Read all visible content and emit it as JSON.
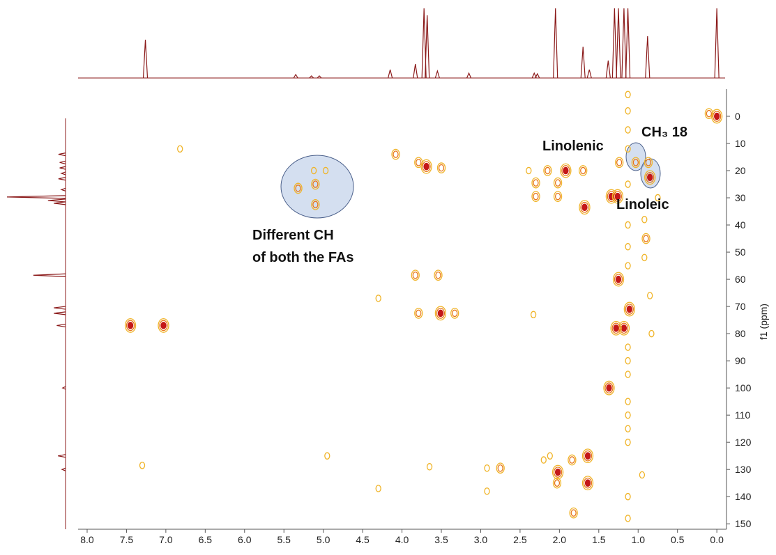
{
  "chart_data": {
    "type": "scatter",
    "y_axis_label": "f1 (ppm)",
    "xlim": [
      8.115,
      -0.105
    ],
    "ylim": [
      -10,
      152
    ],
    "xticks": [
      {
        "value": 8,
        "label": "8.0"
      },
      {
        "value": 7.5,
        "label": "7.5"
      },
      {
        "value": 7,
        "label": "7.0"
      },
      {
        "value": 6.5,
        "label": "6.5"
      },
      {
        "value": 6,
        "label": "6.0"
      },
      {
        "value": 5.5,
        "label": "5.5"
      },
      {
        "value": 5,
        "label": "5.0"
      },
      {
        "value": 4.5,
        "label": "4.5"
      },
      {
        "value": 4,
        "label": "4.0"
      },
      {
        "value": 3.5,
        "label": "3.5"
      },
      {
        "value": 3,
        "label": "3.0"
      },
      {
        "value": 2.5,
        "label": "2.5"
      },
      {
        "value": 2,
        "label": "2.0"
      },
      {
        "value": 1.5,
        "label": "1.5"
      },
      {
        "value": 1,
        "label": "1.0"
      },
      {
        "value": 0.5,
        "label": "0.5"
      },
      {
        "value": 0,
        "label": "0.0"
      }
    ],
    "yticks": [
      0,
      10,
      20,
      30,
      40,
      50,
      60,
      70,
      80,
      90,
      100,
      110,
      120,
      130,
      140,
      150
    ],
    "annotations": [
      "Linolenic",
      "CH₃ 18",
      "Linoleic",
      [
        "Different CH",
        "of both the FAs"
      ]
    ],
    "colors": [
      "#f0b428",
      "#e8761a",
      "#c41818"
    ],
    "trace_color": "#8b1a1a",
    "peaks": {
      "x": [
        0.0,
        0.1,
        7.45,
        7.03,
        6.82,
        5.32,
        5.12,
        5.1,
        5.1,
        4.97,
        4.08,
        3.79,
        3.69,
        3.5,
        3.83,
        3.54,
        3.51,
        3.79,
        3.33,
        4.3,
        2.3,
        2.3,
        2.02,
        2.02,
        2.39,
        1.92,
        2.15,
        1.7,
        1.68,
        1.34,
        1.26,
        1.24,
        1.03,
        0.87,
        0.85,
        1.25,
        1.18,
        1.11,
        1.28,
        1.37,
        1.64,
        1.64,
        2.02,
        1.84,
        2.2,
        2.03,
        2.75,
        2.92,
        0.95,
        1.82,
        1.13,
        1.13,
        1.13,
        1.13,
        1.13,
        1.13,
        1.13,
        1.13,
        1.13,
        1.13,
        1.13,
        1.13,
        1.13,
        1.13,
        1.13,
        1.13,
        1.13,
        0.92,
        0.9,
        0.92,
        0.75,
        0.85,
        0.83,
        2.33,
        4.95,
        7.3,
        3.65,
        4.3,
        2.92,
        2.12
      ],
      "y": [
        0,
        -1,
        77,
        77,
        12,
        26.5,
        20,
        25,
        32.5,
        20,
        14,
        17,
        18.5,
        19,
        58.5,
        58.5,
        72.5,
        72.5,
        72.5,
        67,
        24.5,
        29.5,
        24.5,
        29.5,
        20,
        20,
        20,
        20,
        33.5,
        29.5,
        29.5,
        17,
        17,
        17,
        22.5,
        60,
        78,
        71,
        78,
        100,
        125,
        135,
        131,
        126.5,
        126.5,
        135,
        129.5,
        129.5,
        132,
        146,
        -8,
        -2,
        5,
        12,
        25,
        40,
        48,
        55,
        85,
        90,
        95,
        105,
        110,
        115,
        120,
        140,
        148,
        38,
        45,
        52,
        30,
        66,
        80,
        73,
        125,
        128.5,
        129,
        137,
        138,
        125
      ],
      "intensity": [
        3,
        2,
        3,
        3,
        1,
        2,
        1,
        2,
        2,
        1,
        2,
        2,
        3,
        2,
        2,
        2,
        3,
        2,
        2,
        1,
        2,
        2,
        2,
        2,
        1,
        3,
        2,
        2,
        3,
        3,
        3,
        2,
        2,
        2,
        3,
        3,
        3,
        3,
        3,
        3,
        3,
        3,
        3,
        2,
        1,
        2,
        2,
        1,
        1,
        2,
        1,
        1,
        1,
        1,
        1,
        1,
        1,
        1,
        1,
        1,
        1,
        1,
        1,
        1,
        1,
        1,
        1,
        1,
        2,
        1,
        1,
        1,
        1,
        1,
        1,
        1,
        1,
        1,
        1,
        1
      ]
    },
    "x_projection": {
      "x": [
        7.26,
        5.35,
        5.15,
        5.05,
        4.15,
        3.83,
        3.72,
        3.68,
        3.55,
        3.15,
        2.32,
        2.28,
        2.05,
        1.7,
        1.62,
        1.38,
        1.3,
        1.25,
        1.18,
        1.13,
        0.88,
        0.0
      ],
      "heights": [
        0.55,
        0.05,
        0.03,
        0.03,
        0.12,
        0.2,
        1,
        0.9,
        0.1,
        0.07,
        0.07,
        0.06,
        1,
        0.45,
        0.12,
        0.25,
        1,
        1,
        1,
        1,
        0.6,
        1
      ]
    },
    "y_projection": {
      "y": [
        14,
        17,
        19,
        21,
        23,
        27,
        29.7,
        31,
        32,
        58.5,
        70.5,
        72.5,
        77,
        100,
        125,
        130
      ],
      "heights": [
        0.12,
        0.1,
        0.1,
        0.07,
        0.12,
        0.07,
        1,
        0.3,
        0.2,
        0.55,
        0.2,
        0.2,
        0.15,
        0.05,
        0.13,
        0.06
      ]
    }
  }
}
